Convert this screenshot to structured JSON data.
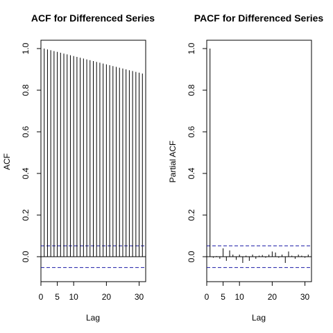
{
  "chart_data": [
    {
      "type": "bar",
      "title": "ACF for Differenced Series",
      "xlabel": "Lag",
      "ylabel": "ACF",
      "xlim": [
        0,
        32
      ],
      "ylim": [
        -0.12,
        1.04
      ],
      "x_ticks": [
        0,
        5,
        10,
        20,
        30
      ],
      "y_ticks": [
        0.0,
        0.2,
        0.4,
        0.6,
        0.8,
        1.0
      ],
      "y_tick_labels": [
        "0.0",
        "0.2",
        "0.4",
        "0.6",
        "0.8",
        "1.0"
      ],
      "ci_bound": 0.052,
      "x": [
        1,
        2,
        3,
        4,
        5,
        6,
        7,
        8,
        9,
        10,
        11,
        12,
        13,
        14,
        15,
        16,
        17,
        18,
        19,
        20,
        21,
        22,
        23,
        24,
        25,
        26,
        27,
        28,
        29,
        30,
        31
      ],
      "values": [
        1.0,
        0.996,
        0.992,
        0.988,
        0.984,
        0.98,
        0.976,
        0.972,
        0.968,
        0.964,
        0.96,
        0.956,
        0.952,
        0.948,
        0.944,
        0.94,
        0.936,
        0.932,
        0.928,
        0.924,
        0.92,
        0.916,
        0.912,
        0.908,
        0.904,
        0.9,
        0.896,
        0.892,
        0.888,
        0.884,
        0.88
      ]
    },
    {
      "type": "bar",
      "title": "PACF for Differenced Series",
      "xlabel": "Lag",
      "ylabel": "Partial ACF",
      "xlim": [
        0,
        32
      ],
      "ylim": [
        -0.12,
        1.04
      ],
      "x_ticks": [
        0,
        5,
        10,
        20,
        30
      ],
      "y_ticks": [
        0.0,
        0.2,
        0.4,
        0.6,
        0.8,
        1.0
      ],
      "y_tick_labels": [
        "0.0",
        "0.2",
        "0.4",
        "0.6",
        "0.8",
        "1.0"
      ],
      "ci_bound": 0.052,
      "x": [
        1,
        2,
        3,
        4,
        5,
        6,
        7,
        8,
        9,
        10,
        11,
        12,
        13,
        14,
        15,
        16,
        17,
        18,
        19,
        20,
        21,
        22,
        23,
        24,
        25,
        26,
        27,
        28,
        29,
        30,
        31
      ],
      "values": [
        1.0,
        -0.005,
        0.003,
        -0.01,
        0.04,
        -0.02,
        0.03,
        0.01,
        -0.015,
        0.01,
        -0.03,
        0.005,
        -0.02,
        0.01,
        -0.01,
        0.005,
        0.008,
        -0.005,
        0.01,
        0.025,
        0.02,
        -0.005,
        0.01,
        -0.03,
        0.025,
        0.005,
        -0.01,
        0.01,
        0.005,
        -0.005,
        0.01
      ]
    }
  ]
}
